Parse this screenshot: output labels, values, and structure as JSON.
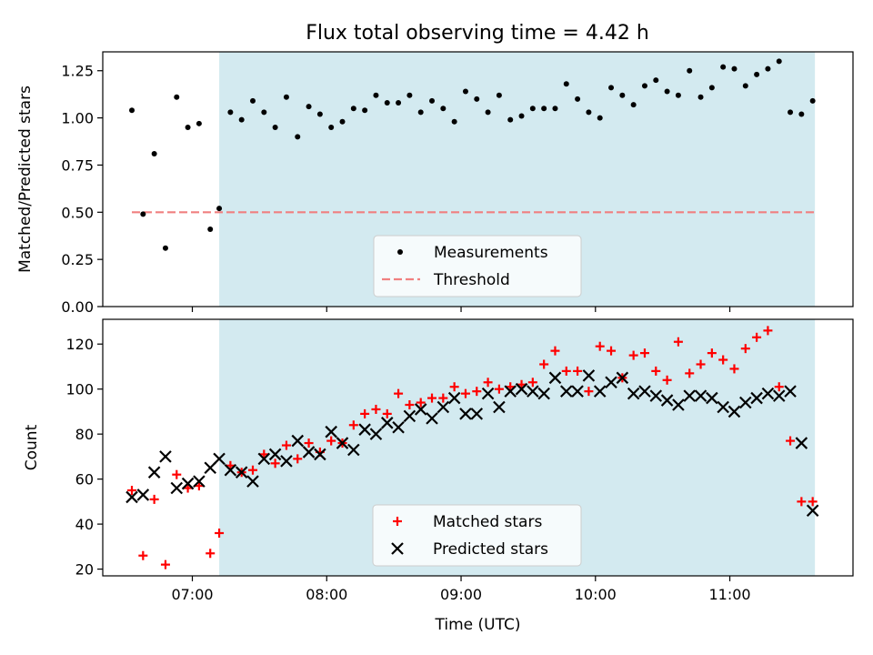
{
  "title": "Flux total observing time = 4.42 h",
  "colors": {
    "observing_window": "#d3eaf0",
    "measurement": "#000000",
    "threshold": "#f08080",
    "matched": "#ff0000",
    "predicted": "#000000"
  },
  "chart_data": [
    {
      "type": "scatter",
      "panel": "top",
      "title": "Flux total observing time = 4.42 h",
      "xlabel": "",
      "ylabel": "Matched/Predicted stars",
      "ylim": [
        0,
        1.35
      ],
      "yticks": [
        0.0,
        0.25,
        0.5,
        0.75,
        1.0,
        1.25
      ],
      "ytick_labels": [
        "0.00",
        "0.25",
        "0.50",
        "0.75",
        "1.00",
        "1.25"
      ],
      "xlim_minutes": [
        380,
        715
      ],
      "xticks_minutes": [
        420,
        480,
        540,
        600,
        660
      ],
      "shaded_window_minutes": [
        432,
        698
      ],
      "threshold": {
        "y": 0.5,
        "x_range_minutes": [
          393,
          698
        ],
        "label": "Threshold",
        "style": "dashed"
      },
      "legend": {
        "position": "bottom-center",
        "entries": [
          "Measurements",
          "Threshold"
        ]
      },
      "series": [
        {
          "name": "Measurements",
          "marker": "dot",
          "x_minutes": [
            393,
            398,
            403,
            408,
            413,
            418,
            423,
            428,
            432,
            437,
            442,
            447,
            452,
            457,
            462,
            467,
            472,
            477,
            482,
            487,
            492,
            497,
            502,
            507,
            512,
            517,
            522,
            527,
            532,
            537,
            542,
            547,
            552,
            557,
            562,
            567,
            572,
            577,
            582,
            587,
            592,
            597,
            602,
            607,
            612,
            617,
            622,
            627,
            632,
            637,
            642,
            647,
            652,
            657,
            662,
            667,
            672,
            677,
            682,
            687,
            692,
            697
          ],
          "y": [
            1.04,
            0.49,
            0.81,
            0.31,
            1.11,
            0.95,
            0.97,
            0.41,
            0.52,
            1.03,
            0.99,
            1.09,
            1.03,
            0.95,
            1.11,
            0.9,
            1.06,
            1.02,
            0.95,
            0.98,
            1.05,
            1.04,
            1.12,
            1.08,
            1.08,
            1.12,
            1.03,
            1.09,
            1.05,
            0.98,
            1.14,
            1.1,
            1.03,
            1.12,
            0.99,
            1.01,
            1.05,
            1.05,
            1.05,
            1.18,
            1.1,
            1.03,
            1.0,
            1.16,
            1.12,
            1.07,
            1.17,
            1.2,
            1.14,
            1.12,
            1.25,
            1.11,
            1.16,
            1.27,
            1.26,
            1.17,
            1.23,
            1.26,
            1.3,
            1.03,
            1.02,
            1.09
          ]
        }
      ]
    },
    {
      "type": "scatter",
      "panel": "bottom",
      "xlabel": "Time (UTC)",
      "ylabel": "Count",
      "ylim": [
        17,
        131
      ],
      "yticks": [
        20,
        40,
        60,
        80,
        100,
        120
      ],
      "ytick_labels": [
        "20",
        "40",
        "60",
        "80",
        "100",
        "120"
      ],
      "xlim_minutes": [
        380,
        715
      ],
      "xticks_minutes": [
        420,
        480,
        540,
        600,
        660
      ],
      "xtick_labels": [
        "07:00",
        "08:00",
        "09:00",
        "10:00",
        "11:00"
      ],
      "shaded_window_minutes": [
        432,
        698
      ],
      "legend": {
        "position": "bottom-center",
        "entries": [
          "Matched stars",
          "Predicted stars"
        ]
      },
      "series": [
        {
          "name": "Matched stars",
          "marker": "plus",
          "x_minutes": [
            393,
            398,
            403,
            408,
            413,
            418,
            423,
            428,
            432,
            437,
            442,
            447,
            452,
            457,
            462,
            467,
            472,
            477,
            482,
            487,
            492,
            497,
            502,
            507,
            512,
            517,
            522,
            527,
            532,
            537,
            542,
            547,
            552,
            557,
            562,
            567,
            572,
            577,
            582,
            587,
            592,
            597,
            602,
            607,
            612,
            617,
            622,
            627,
            632,
            637,
            642,
            647,
            652,
            657,
            662,
            667,
            672,
            677,
            682,
            687,
            692,
            697
          ],
          "y": [
            55,
            26,
            51,
            22,
            62,
            56,
            57,
            27,
            36,
            66,
            63,
            64,
            71,
            67,
            75,
            69,
            76,
            72,
            77,
            76,
            84,
            89,
            91,
            89,
            98,
            93,
            94,
            96,
            96,
            101,
            98,
            99,
            103,
            100,
            101,
            102,
            103,
            111,
            117,
            108,
            108,
            99,
            119,
            117,
            105,
            115,
            116,
            108,
            104,
            121,
            107,
            111,
            116,
            113,
            109,
            118,
            123,
            126,
            101,
            77,
            50,
            50
          ]
        },
        {
          "name": "Predicted stars",
          "marker": "x",
          "x_minutes": [
            393,
            398,
            403,
            408,
            413,
            418,
            423,
            428,
            432,
            437,
            442,
            447,
            452,
            457,
            462,
            467,
            472,
            477,
            482,
            487,
            492,
            497,
            502,
            507,
            512,
            517,
            522,
            527,
            532,
            537,
            542,
            547,
            552,
            557,
            562,
            567,
            572,
            577,
            582,
            587,
            592,
            597,
            602,
            607,
            612,
            617,
            622,
            627,
            632,
            637,
            642,
            647,
            652,
            657,
            662,
            667,
            672,
            677,
            682,
            687,
            692,
            697
          ],
          "y": [
            52,
            53,
            63,
            70,
            56,
            58,
            59,
            65,
            69,
            64,
            63,
            59,
            69,
            71,
            68,
            77,
            72,
            71,
            81,
            76,
            73,
            82,
            80,
            85,
            83,
            88,
            91,
            87,
            92,
            96,
            89,
            89,
            98,
            92,
            99,
            100,
            99,
            98,
            105,
            99,
            99,
            106,
            99,
            103,
            105,
            98,
            99,
            97,
            95,
            93,
            97,
            97,
            96,
            92,
            90,
            94,
            96,
            98,
            97,
            99,
            76,
            46
          ]
        }
      ]
    }
  ]
}
